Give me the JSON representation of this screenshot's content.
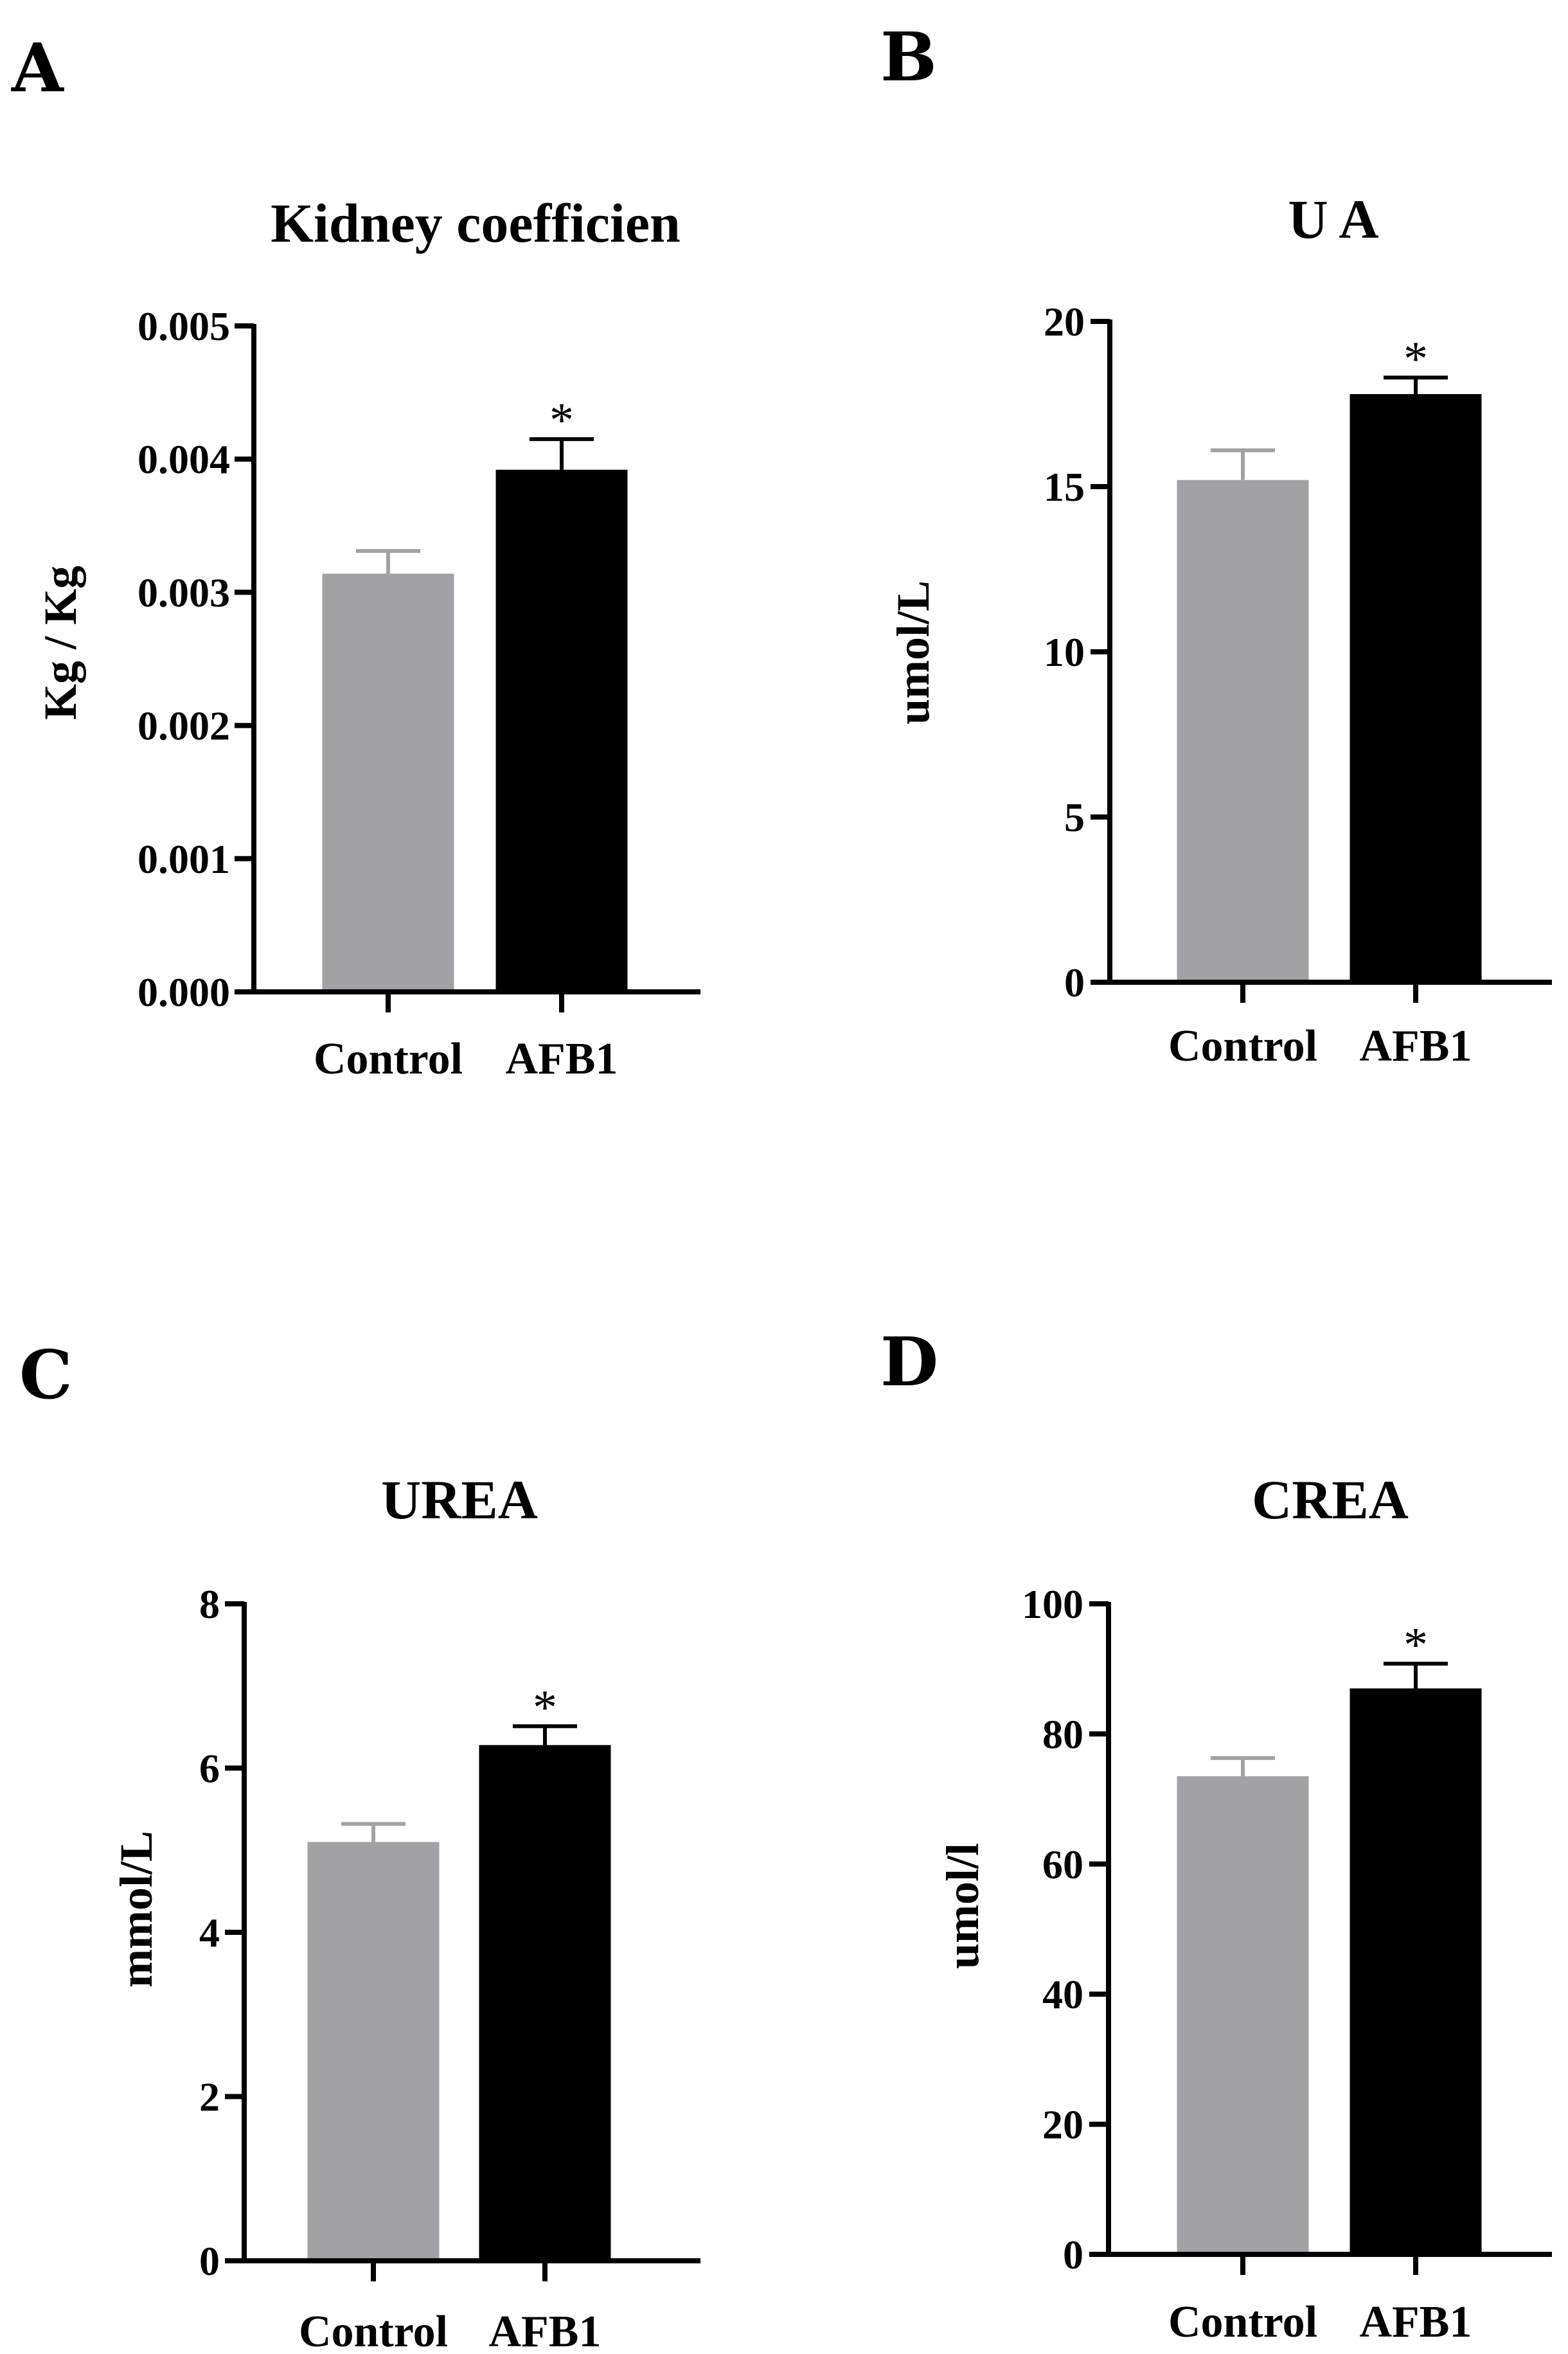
{
  "chart_data": [
    {
      "panel": "A",
      "type": "bar",
      "title": "Kidney coefficien",
      "xlabel": "",
      "ylabel": "Kg / Kg",
      "ylim": [
        0,
        0.005
      ],
      "yticks": [
        "0.000",
        "0.001",
        "0.002",
        "0.003",
        "0.004",
        "0.005"
      ],
      "categories": [
        "Control",
        "AFB1"
      ],
      "values": [
        0.00314,
        0.00392
      ],
      "errors": [
        0.00017,
        0.00023
      ],
      "significance": [
        "",
        "*"
      ],
      "colors": [
        "#a2a1a6",
        "#000000"
      ]
    },
    {
      "panel": "B",
      "type": "bar",
      "title": "U A",
      "xlabel": "",
      "ylabel": "umol/L",
      "ylim": [
        0,
        20
      ],
      "yticks": [
        "0",
        "5",
        "10",
        "15",
        "20"
      ],
      "categories": [
        "Control",
        "AFB1"
      ],
      "values": [
        15.2,
        17.8
      ],
      "errors": [
        0.9,
        0.5
      ],
      "significance": [
        "",
        "*"
      ],
      "colors": [
        "#a2a1a6",
        "#000000"
      ]
    },
    {
      "panel": "C",
      "type": "bar",
      "title": "UREA",
      "xlabel": "",
      "ylabel": "mmol/L",
      "ylim": [
        0,
        8
      ],
      "yticks": [
        "0",
        "2",
        "4",
        "6",
        "8"
      ],
      "categories": [
        "Control",
        "AFB1"
      ],
      "values": [
        5.1,
        6.28
      ],
      "errors": [
        0.22,
        0.23
      ],
      "significance": [
        "",
        "*"
      ],
      "colors": [
        "#a2a1a6",
        "#000000"
      ]
    },
    {
      "panel": "D",
      "type": "bar",
      "title": "CREA",
      "xlabel": "",
      "ylabel": "umol/l",
      "ylim": [
        0,
        100
      ],
      "yticks": [
        "0",
        "20",
        "40",
        "60",
        "80",
        "100"
      ],
      "categories": [
        "Control",
        "AFB1"
      ],
      "values": [
        73.5,
        87
      ],
      "errors": [
        2.8,
        3.8
      ],
      "significance": [
        "",
        "*"
      ],
      "colors": [
        "#a2a1a6",
        "#000000"
      ]
    }
  ]
}
